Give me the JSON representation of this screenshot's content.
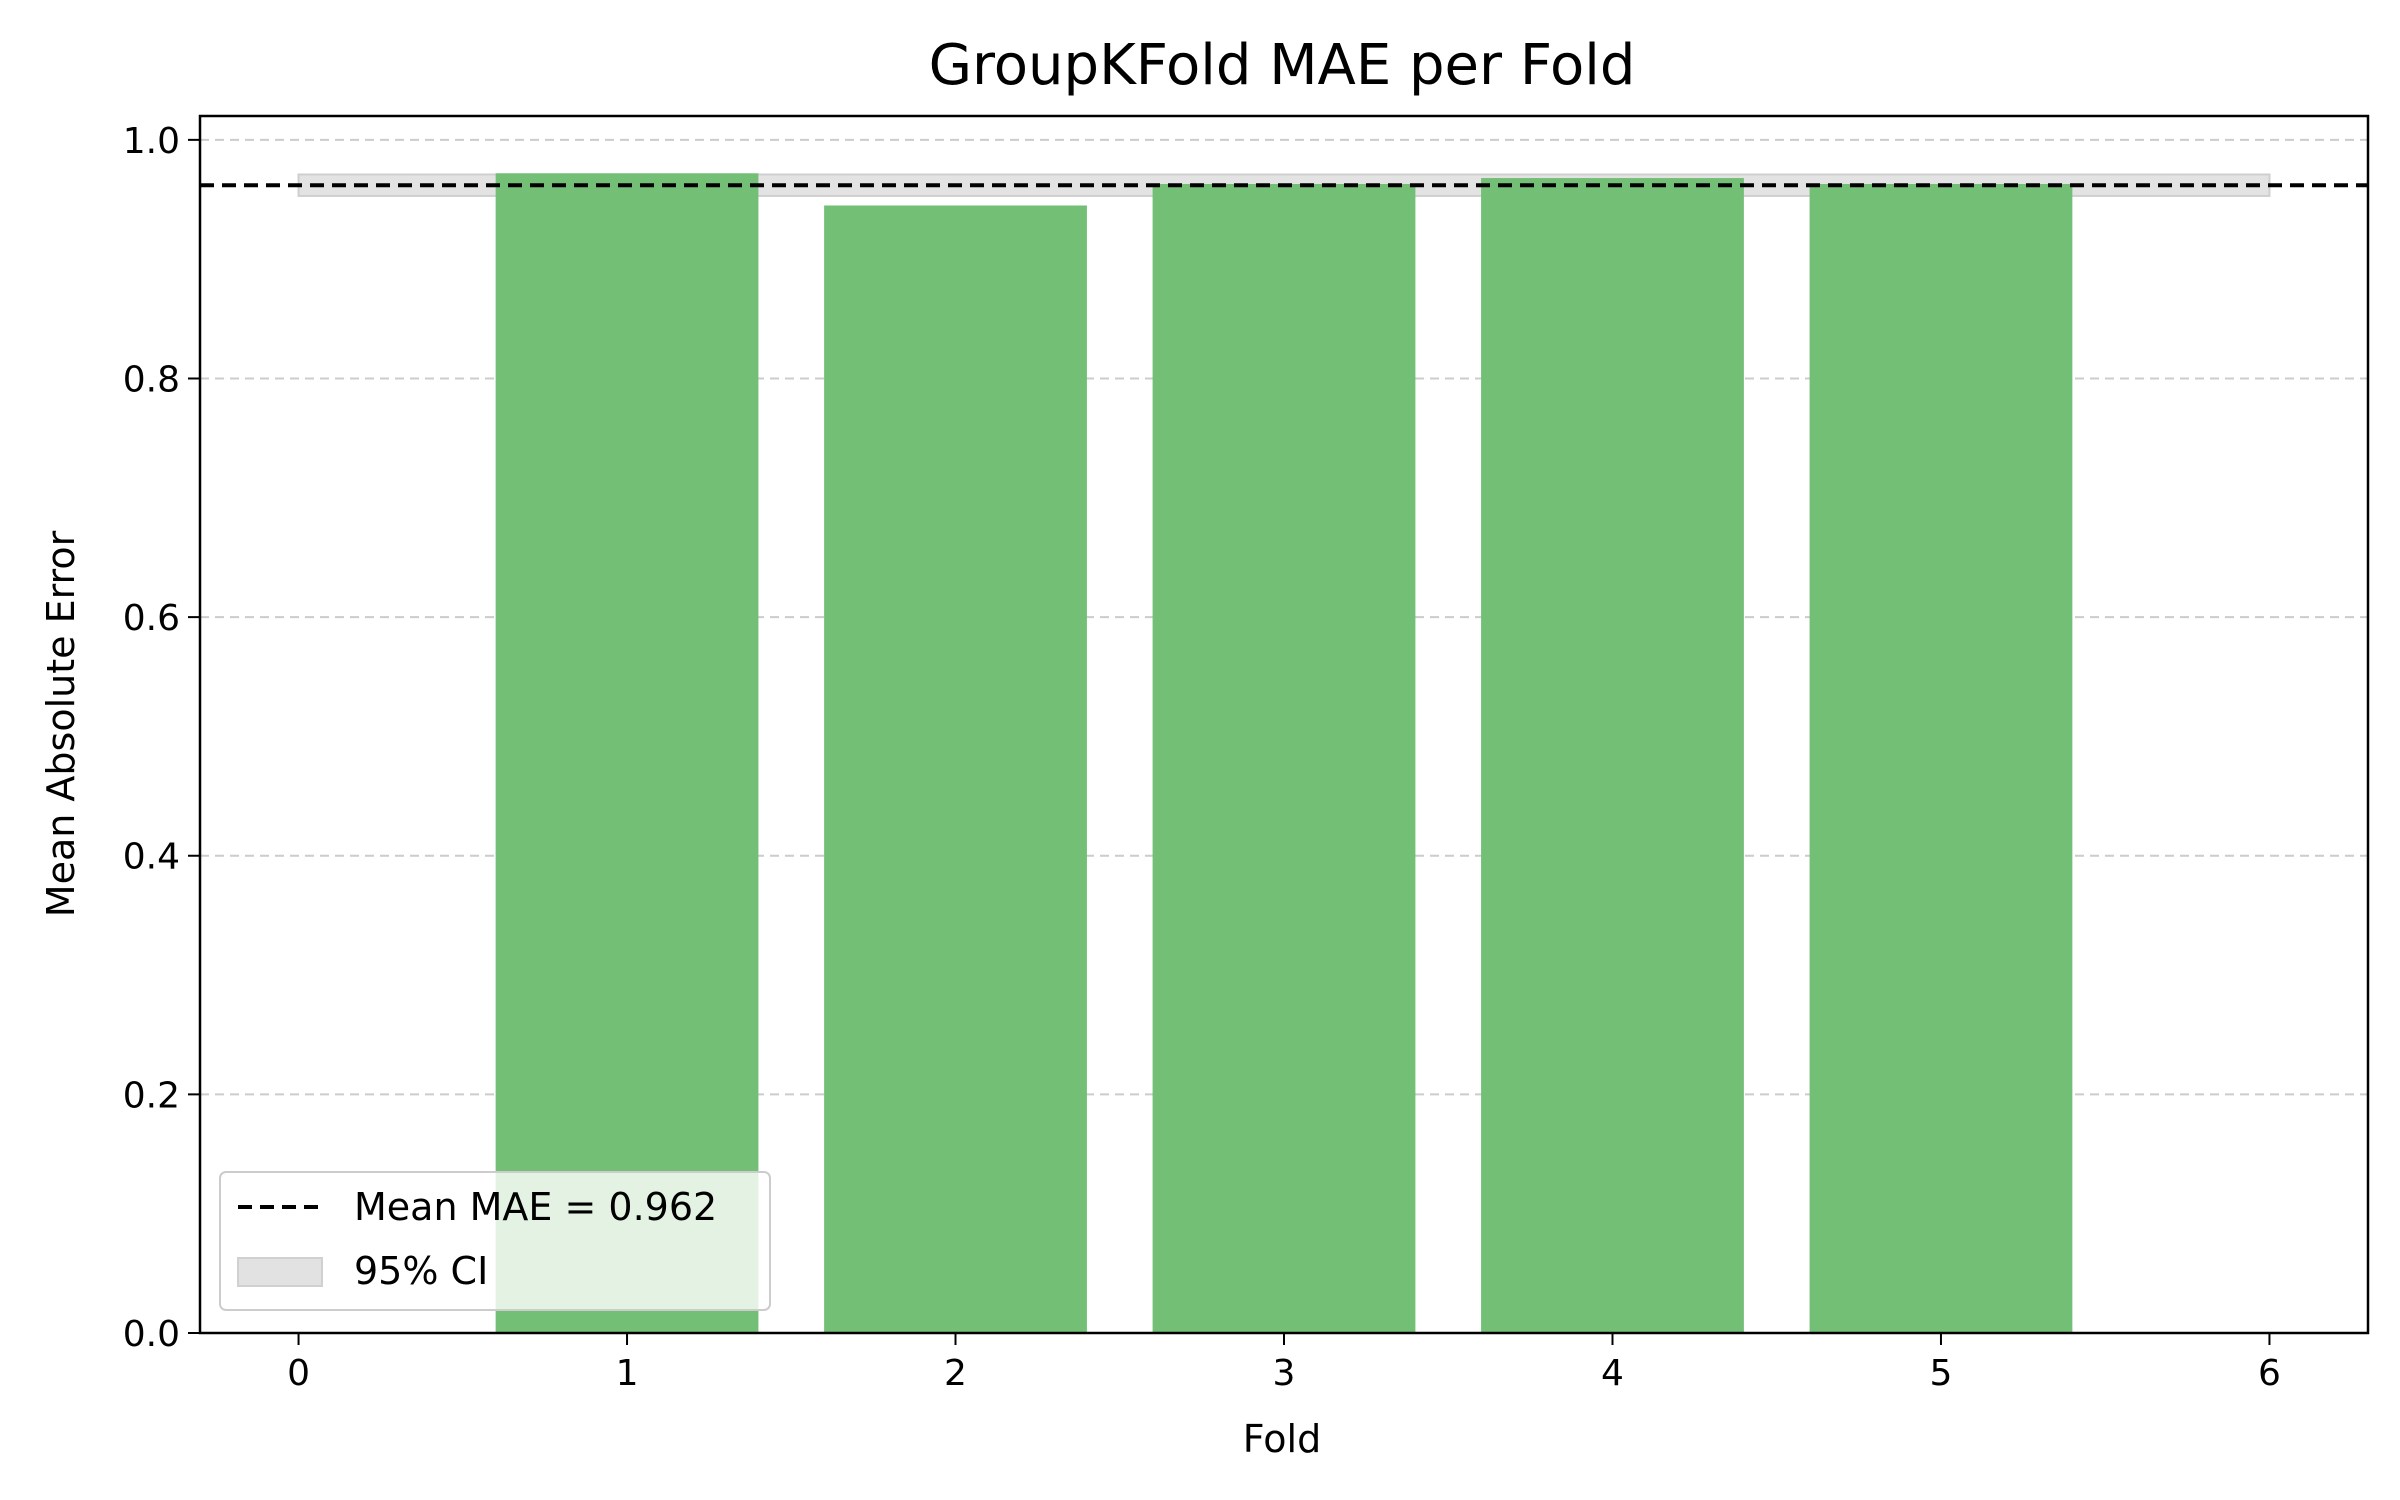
{
  "chart_data": {
    "type": "bar",
    "title": "GroupKFold MAE per Fold",
    "xlabel": "Fold",
    "ylabel": "Mean Absolute Error",
    "x": [
      1,
      2,
      3,
      4,
      5
    ],
    "values": [
      0.972,
      0.945,
      0.963,
      0.968,
      0.963
    ],
    "xlim": [
      -0.3,
      6.3
    ],
    "ylim": [
      0,
      1.02
    ],
    "xticks": [
      "0",
      "1",
      "2",
      "3",
      "4",
      "5",
      "6"
    ],
    "yticks": [
      "0.0",
      "0.2",
      "0.4",
      "0.6",
      "0.8",
      "1.0"
    ],
    "grid": "y, dashed",
    "bar_color": "#72bf75",
    "mean_line": {
      "value": 0.962,
      "label": "Mean MAE = 0.962",
      "color": "#000000",
      "style": "dashed"
    },
    "ci_band": {
      "low": 0.953,
      "high": 0.971,
      "x_range": [
        0,
        6
      ],
      "label": "95% CI",
      "color": "#d9d9d9"
    },
    "legend_position": "lower-left"
  }
}
